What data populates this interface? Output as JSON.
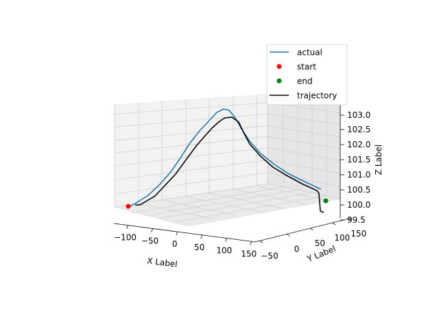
{
  "chart_data": {
    "type": "line3d",
    "title": "",
    "xlabel": "X Label",
    "ylabel": "Y Label",
    "zlabel": "Z Label",
    "x_ticks": [
      "−100",
      "−50",
      "0",
      "50",
      "100",
      "150"
    ],
    "y_ticks": [
      "−50",
      "0",
      "50",
      "100",
      "150"
    ],
    "z_ticks": [
      "99.5",
      "100.0",
      "100.5",
      "101.0",
      "101.5",
      "102.0",
      "102.5",
      "103.0"
    ],
    "legend": {
      "position": "top-right",
      "entries": [
        {
          "key": "actual",
          "label": "actual",
          "kind": "line",
          "color": "#1f77b4"
        },
        {
          "key": "start",
          "label": "start",
          "kind": "marker",
          "color": "#ff0000"
        },
        {
          "key": "end",
          "label": "end",
          "kind": "marker",
          "color": "#008000"
        },
        {
          "key": "trajectory",
          "label": "trajectory",
          "kind": "line",
          "color": "#000000"
        }
      ]
    },
    "series": [
      {
        "key": "actual",
        "name": "actual",
        "color": "#1f77b4"
      },
      {
        "key": "trajectory",
        "name": "trajectory",
        "color": "#000000"
      },
      {
        "key": "start",
        "name": "start",
        "color": "#ff0000"
      },
      {
        "key": "end",
        "name": "end",
        "color": "#008000"
      }
    ]
  }
}
